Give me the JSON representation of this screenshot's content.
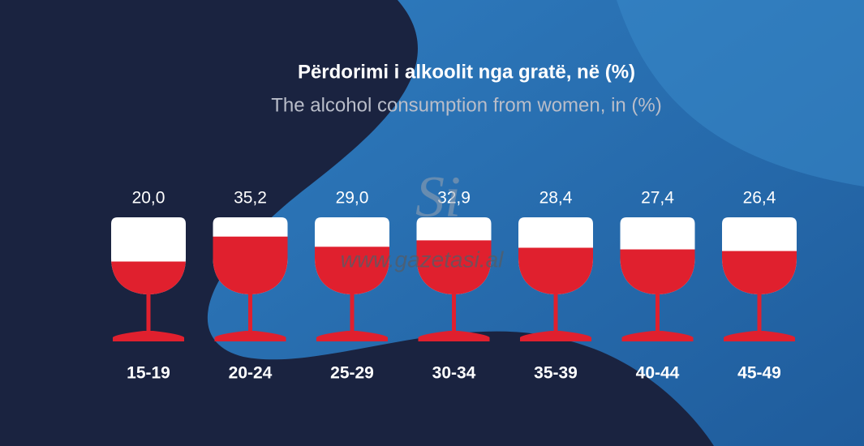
{
  "chart_data": {
    "type": "glass",
    "title": "Përdorimi i alkoolit nga gratë, në (%)",
    "subtitle": "The alcohol consumption from women, in (%)",
    "categories": [
      "15-19",
      "20-24",
      "25-29",
      "30-34",
      "35-39",
      "40-44",
      "45-49"
    ],
    "values": [
      20.0,
      35.2,
      29.0,
      32.9,
      28.4,
      27.4,
      26.4
    ],
    "value_labels": [
      "20,0",
      "35,2",
      "29,0",
      "32,9",
      "28,4",
      "27,4",
      "26,4"
    ],
    "color": "#e0202e",
    "watermark_logo": "Si",
    "watermark": "www.gazetasi.al"
  }
}
